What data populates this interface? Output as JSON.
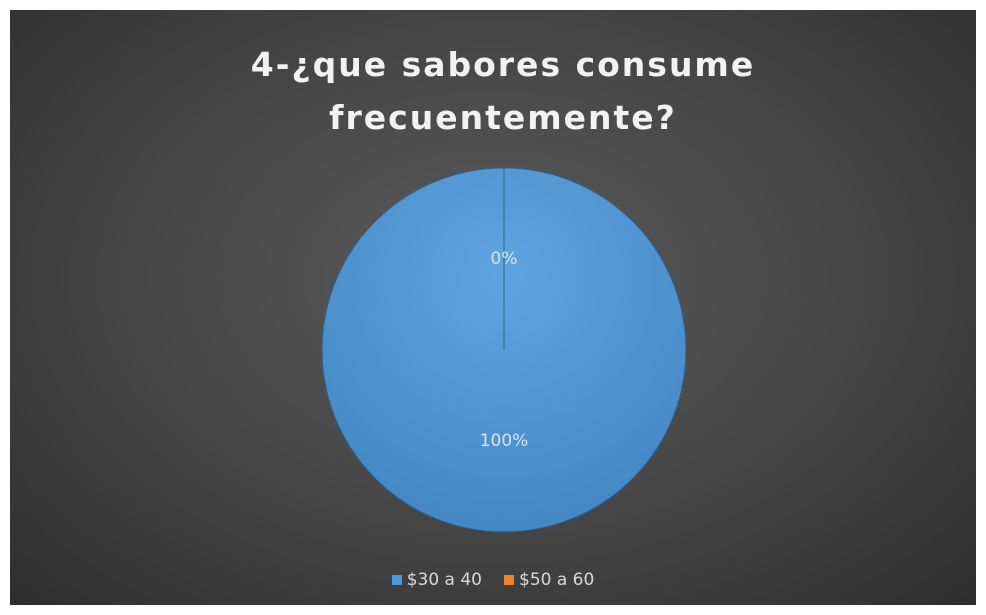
{
  "chart_data": {
    "type": "pie",
    "title": "4-¿que sabores consume frecuentemente?",
    "categories": [
      "$30 a 40",
      "$50 a 60"
    ],
    "values": [
      100,
      0
    ],
    "value_labels": [
      "100%",
      "0%"
    ],
    "colors": [
      "#4a98dc",
      "#ee8424"
    ],
    "legend": "bottom"
  }
}
